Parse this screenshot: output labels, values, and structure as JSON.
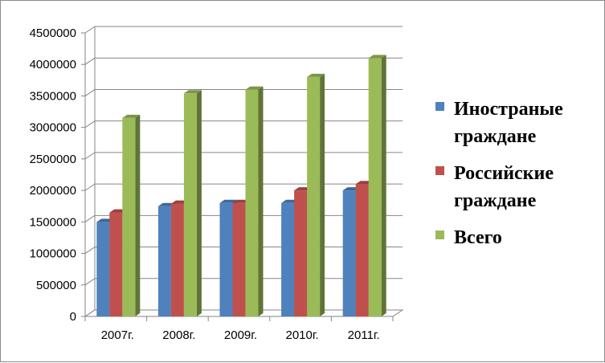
{
  "chart_data": {
    "type": "bar",
    "categories": [
      "2007г.",
      "2008г.",
      "2009г.",
      "2010г.",
      "2011г."
    ],
    "series": [
      {
        "name": "Иностраные граждане",
        "legend_lines": [
          "Иностраные",
          "граждане"
        ],
        "color": "#4f81bd",
        "values": [
          1500000,
          1750000,
          1800000,
          1800000,
          2000000
        ]
      },
      {
        "name": "Российские граждане",
        "legend_lines": [
          "Российские",
          "граждане"
        ],
        "color": "#c0504d",
        "values": [
          1650000,
          1790000,
          1800000,
          2000000,
          2100000
        ]
      },
      {
        "name": "Всего",
        "legend_lines": [
          "Всего"
        ],
        "color": "#9bbb59",
        "values": [
          3150000,
          3540000,
          3600000,
          3800000,
          4100000
        ]
      }
    ],
    "ylim": [
      0,
      4500000
    ],
    "ytick_step": 500000,
    "yticks": [
      "0",
      "500000",
      "1000000",
      "1500000",
      "2000000",
      "2500000",
      "3000000",
      "3500000",
      "4000000",
      "4500000"
    ],
    "grid": true,
    "style": "3d-clustered-column",
    "legend_position": "right",
    "title": "",
    "xlabel": "",
    "ylabel": ""
  }
}
